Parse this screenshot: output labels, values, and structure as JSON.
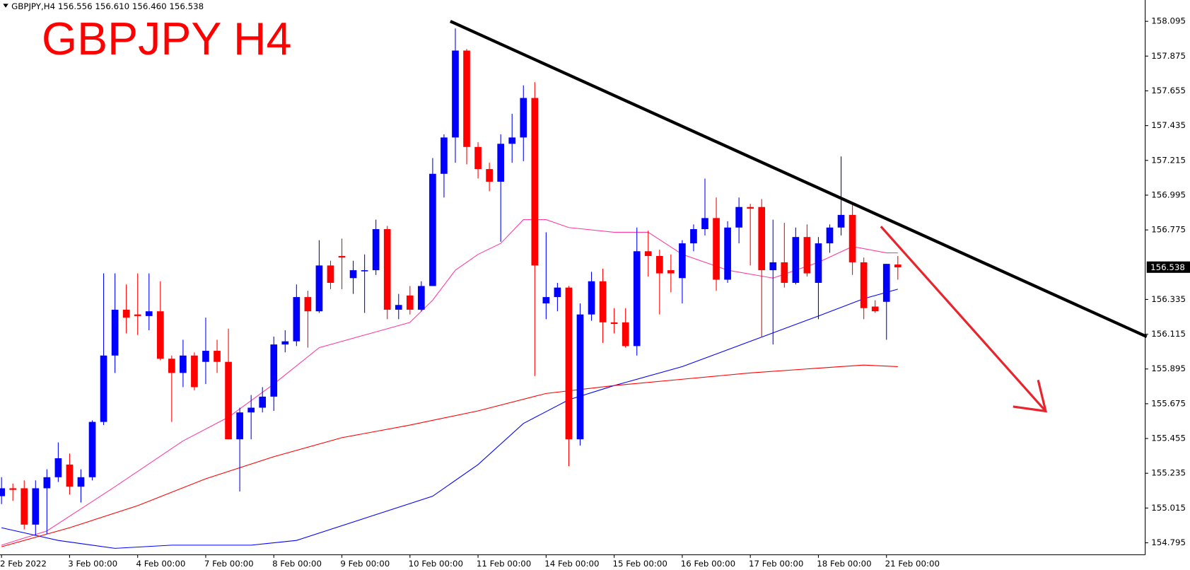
{
  "chart_data": {
    "type": "candlestick",
    "header": "GBPJPY,H4  156.556 156.610 156.460 156.538",
    "title": "GBPJPY H4",
    "categories": [
      "2 Feb 2022",
      null,
      null,
      null,
      null,
      null,
      "3 Feb 00:00",
      null,
      null,
      null,
      null,
      null,
      "4 Feb 00:00",
      null,
      null,
      null,
      null,
      null,
      "7 Feb 00:00",
      null,
      null,
      null,
      null,
      null,
      "8 Feb 00:00",
      null,
      null,
      null,
      null,
      null,
      "9 Feb 00:00",
      null,
      null,
      null,
      null,
      null,
      "10 Feb 00:00",
      null,
      null,
      null,
      null,
      null,
      "11 Feb 00:00",
      null,
      null,
      null,
      null,
      null,
      "14 Feb 00:00",
      null,
      null,
      null,
      null,
      null,
      "15 Feb 00:00",
      null,
      null,
      null,
      null,
      null,
      "16 Feb 00:00",
      null,
      null,
      null,
      null,
      null,
      "17 Feb 00:00",
      null,
      null,
      null,
      null,
      null,
      "18 Feb 00:00",
      null,
      null,
      null,
      null,
      null,
      "21 Feb 00:00",
      null
    ],
    "open": [
      155.09,
      155.14,
      155.14,
      154.91,
      155.14,
      155.21,
      155.29,
      155.15,
      155.21,
      155.56,
      155.98,
      156.27,
      156.24,
      156.23,
      156.26,
      155.96,
      155.87,
      155.98,
      155.94,
      156.01,
      155.94,
      155.45,
      155.62,
      155.65,
      155.72,
      156.05,
      156.07,
      156.35,
      156.26,
      156.55,
      156.61,
      156.47,
      156.52,
      156.52,
      156.78,
      156.27,
      156.36,
      156.27,
      156.42,
      157.13,
      157.36,
      157.91,
      157.3,
      157.16,
      157.08,
      157.32,
      157.36,
      157.61,
      156.31,
      156.35,
      156.41,
      155.45,
      156.24,
      156.45,
      156.19,
      156.19,
      156.04,
      156.64,
      156.61,
      156.52,
      156.47,
      156.69,
      156.78,
      156.85,
      156.46,
      156.79,
      156.92,
      156.92,
      156.52,
      156.57,
      156.44,
      156.73,
      156.44,
      156.69,
      156.79,
      156.87,
      156.57,
      156.29,
      156.32,
      156.556
    ],
    "high": [
      155.21,
      155.17,
      155.19,
      155.19,
      155.26,
      155.43,
      155.36,
      155.26,
      155.57,
      156.5,
      156.5,
      156.43,
      156.5,
      156.5,
      156.45,
      155.98,
      156.08,
      156.0,
      156.22,
      156.08,
      156.15,
      155.65,
      155.73,
      155.78,
      156.1,
      156.14,
      156.43,
      156.39,
      156.71,
      156.58,
      156.72,
      156.58,
      156.62,
      156.84,
      156.8,
      156.37,
      156.42,
      156.45,
      157.23,
      157.38,
      158.05,
      157.92,
      157.33,
      157.2,
      157.38,
      157.51,
      157.69,
      157.71,
      156.76,
      156.44,
      156.42,
      156.31,
      156.51,
      156.53,
      156.28,
      156.28,
      156.79,
      156.77,
      156.65,
      156.62,
      156.71,
      156.81,
      157.1,
      156.98,
      156.83,
      156.98,
      156.94,
      156.97,
      156.84,
      156.82,
      156.79,
      156.81,
      156.73,
      156.81,
      157.24,
      156.94,
      156.6,
      156.33,
      156.56,
      156.61
    ],
    "low": [
      155.04,
      155.06,
      154.88,
      154.84,
      154.85,
      155.18,
      155.1,
      155.05,
      155.19,
      155.54,
      155.87,
      156.12,
      156.11,
      156.14,
      155.95,
      155.56,
      155.78,
      155.76,
      155.8,
      155.87,
      155.45,
      155.12,
      155.45,
      155.62,
      155.63,
      156.0,
      156.04,
      156.03,
      156.25,
      156.4,
      156.4,
      156.37,
      156.25,
      156.49,
      156.21,
      156.21,
      156.24,
      156.26,
      156.42,
      156.98,
      157.2,
      157.19,
      157.1,
      157.02,
      156.7,
      157.2,
      157.21,
      155.85,
      156.21,
      156.26,
      155.28,
      155.41,
      156.2,
      156.06,
      156.12,
      156.03,
      155.98,
      156.48,
      156.24,
      156.38,
      156.31,
      156.64,
      156.74,
      156.39,
      156.44,
      156.69,
      156.55,
      156.1,
      156.05,
      156.41,
      156.43,
      156.48,
      156.21,
      156.63,
      156.74,
      156.49,
      156.21,
      156.25,
      156.08,
      156.46
    ],
    "close": [
      155.14,
      155.13,
      154.91,
      155.14,
      155.21,
      155.33,
      155.15,
      155.21,
      155.56,
      155.98,
      156.27,
      156.22,
      156.23,
      156.26,
      155.96,
      155.87,
      155.98,
      155.78,
      156.01,
      155.94,
      155.45,
      155.62,
      155.65,
      155.72,
      156.05,
      156.07,
      156.35,
      156.26,
      156.55,
      156.44,
      156.6,
      156.52,
      156.52,
      156.78,
      156.27,
      156.3,
      156.27,
      156.42,
      157.13,
      157.36,
      157.91,
      157.3,
      157.16,
      157.08,
      157.32,
      157.36,
      157.61,
      156.55,
      156.35,
      156.41,
      155.45,
      156.24,
      156.45,
      156.19,
      156.18,
      156.04,
      156.64,
      156.61,
      156.5,
      156.5,
      156.69,
      156.78,
      156.85,
      156.46,
      156.79,
      156.92,
      156.91,
      156.52,
      156.57,
      156.44,
      156.73,
      156.5,
      156.69,
      156.79,
      156.87,
      156.57,
      156.28,
      156.26,
      156.56,
      156.538
    ],
    "up_color": "#0000ff",
    "down_color": "#ff0000",
    "lines": [
      {
        "color": "#ff3ca0",
        "x": [
          0,
          4,
          10,
          16,
          20,
          24,
          28,
          32,
          36,
          38,
          40,
          42,
          44,
          46,
          48,
          50,
          54,
          57,
          60,
          64,
          68,
          72,
          75,
          78,
          79
        ],
        "values": [
          154.78,
          154.87,
          155.15,
          155.44,
          155.59,
          155.8,
          156.03,
          156.11,
          156.19,
          156.33,
          156.52,
          156.62,
          156.69,
          156.84,
          156.84,
          156.79,
          156.76,
          156.76,
          156.62,
          156.52,
          156.47,
          156.57,
          156.67,
          156.63,
          156.63
        ]
      },
      {
        "color": "#0000ff",
        "x": [
          0,
          5,
          10,
          15,
          22,
          26,
          32,
          38,
          42,
          46,
          50,
          54,
          60,
          66,
          72,
          76,
          79
        ],
        "values": [
          154.89,
          154.81,
          154.76,
          154.78,
          154.78,
          154.81,
          154.95,
          155.09,
          155.29,
          155.55,
          155.7,
          155.79,
          155.91,
          156.07,
          156.23,
          156.34,
          156.4
        ]
      },
      {
        "color": "#ff0000",
        "x": [
          0,
          6,
          12,
          18,
          24,
          30,
          36,
          42,
          48,
          54,
          60,
          66,
          72,
          76,
          79
        ],
        "values": [
          154.77,
          154.89,
          155.03,
          155.2,
          155.34,
          155.46,
          155.54,
          155.63,
          155.74,
          155.79,
          155.83,
          155.87,
          155.9,
          155.92,
          155.91
        ]
      }
    ],
    "ylim": [
      154.719,
      158.23
    ],
    "yticks": [
      154.795,
      155.015,
      155.235,
      155.455,
      155.675,
      155.895,
      156.115,
      156.335,
      156.775,
      156.995,
      157.215,
      157.435,
      157.655,
      157.875,
      158.095
    ]
  }
}
